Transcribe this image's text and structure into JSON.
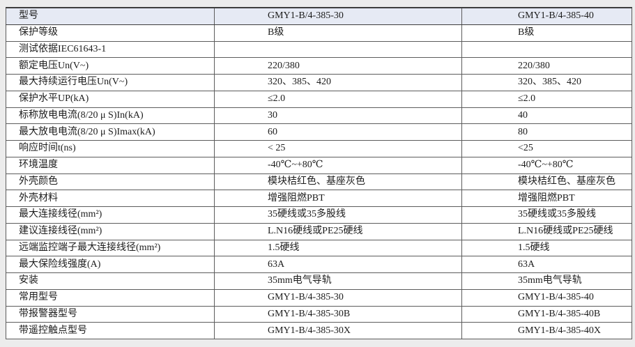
{
  "table": {
    "columns": [
      "型号",
      "GMY1-B/4-385-30",
      "GMY1-B/4-385-40"
    ],
    "rows": [
      {
        "label": "保护等级",
        "values": [
          "B级",
          "B级"
        ]
      },
      {
        "label": "测试依据IEC61643-1",
        "values": [
          "",
          ""
        ]
      },
      {
        "label": "额定电压Un(V~)",
        "values": [
          "220/380",
          "220/380"
        ]
      },
      {
        "label": "最大持续运行电压Un(V~)",
        "values": [
          "320、385、420",
          "320、385、420"
        ]
      },
      {
        "label": "保护水平UP(kA)",
        "values": [
          "≤2.0",
          "≤2.0"
        ]
      },
      {
        "label": "标称放电电流(8/20 μ S)In(kA)",
        "values": [
          "30",
          "40"
        ]
      },
      {
        "label": "最大放电电流(8/20 μ S)Imax(kA)",
        "values": [
          "60",
          "80"
        ]
      },
      {
        "label": "响应时间t(ns)",
        "values": [
          "< 25",
          "<25"
        ]
      },
      {
        "label": "环境温度",
        "values": [
          "-40℃~+80℃",
          "-40℃~+80℃"
        ]
      },
      {
        "label": "外壳颜色",
        "values": [
          "模块桔红色、基座灰色",
          "模块桔红色、基座灰色"
        ]
      },
      {
        "label": "外壳材料",
        "values": [
          "增强阻燃PBT",
          "增强阻燃PBT"
        ]
      },
      {
        "label": "最大连接线径(mm²)",
        "values": [
          "35硬线或35多股线",
          "35硬线或35多股线"
        ]
      },
      {
        "label": "建议连接线径(mm²)",
        "values": [
          "L.N16硬线或PE25硬线",
          "L.N16硬线或PE25硬线"
        ]
      },
      {
        "label": "远端监控端子最大连接线径(mm²)",
        "values": [
          "1.5硬线",
          "1.5硬线"
        ]
      },
      {
        "label": "最大保险线强度(A)",
        "values": [
          "63A",
          "63A"
        ]
      },
      {
        "label": "安装",
        "values": [
          "35mm电气导轨",
          "35mm电气导轨"
        ]
      },
      {
        "label": "常用型号",
        "values": [
          "GMY1-B/4-385-30",
          "GMY1-B/4-385-40"
        ]
      },
      {
        "label": "带报警器型号",
        "values": [
          "GMY1-B/4-385-30B",
          "GMY1-B/4-385-40B"
        ]
      },
      {
        "label": "带遥控触点型号",
        "values": [
          "GMY1-B/4-385-30X",
          "GMY1-B/4-385-40X"
        ]
      }
    ]
  },
  "colors": {
    "header_bg": "#e6eaf4",
    "border": "#5c5c5c",
    "page_bg": "#ececec",
    "cell_bg": "#ffffff",
    "text": "#1c1c1c"
  }
}
